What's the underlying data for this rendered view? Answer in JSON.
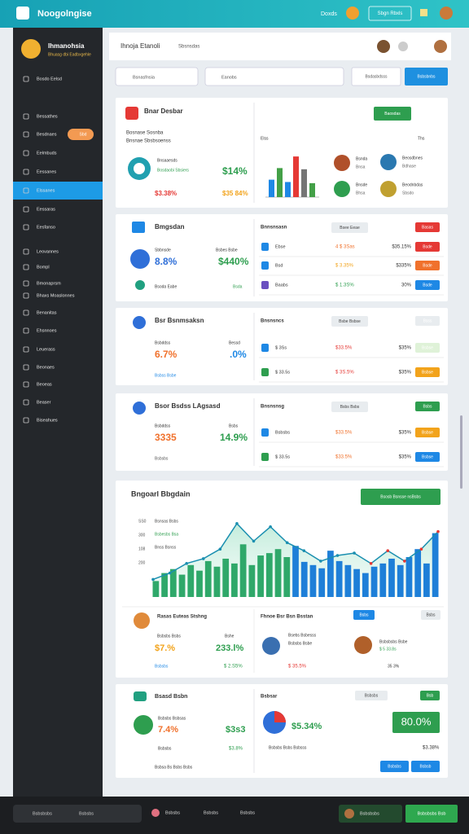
{
  "header": {
    "app_name": "Noogolngise",
    "user": "Doxds",
    "button": "Sbgn Rbxls"
  },
  "sidebar": {
    "profile_name": "Ihmanohsia",
    "profile_sub": "Bhuasg dbi Eadbxgehle",
    "badge": "Sbd",
    "items": [
      "Bosdo Eelsd",
      "Bessathes",
      "Besdnaes",
      "Eelmbuds",
      "Eessanes",
      "Elssanes",
      "Eessaras",
      "Eesfanso",
      "Leovannes",
      "Bompl",
      "Bmonaprsm",
      "Bhaxs Moaslonnes",
      "Benanitas",
      "Ehsnnoes",
      "Leuerass",
      "Beonaes",
      "Beoeas",
      "Beaser",
      "Biseahues"
    ]
  },
  "toolbar": {
    "title": "Ihnoja Etanoli",
    "subtitle": "Sbsnsdas",
    "search": "Bsnasfnsia",
    "filter": "Eanobs",
    "filter_btn": "Bsdasbdsss",
    "primary_btn": "Bsbsbnbs"
  },
  "card1": {
    "title": "Bnar Desbar",
    "desc": "Bosnase Sosnba",
    "desc2": "Bnsnae Sbsbsoenss",
    "stat_label": "Bnsaaesds",
    "stat_sub": "Bosdaobi Sbsiers",
    "stat_main": "$14%",
    "stat_a": "$3.38%",
    "stat_b": "$35 84%",
    "button": "Baosdas",
    "chart_label": "Elss",
    "chart_right": "Ths",
    "chart": {
      "values": [
        30,
        50,
        26,
        70,
        48,
        24
      ],
      "colors": [
        "#1e88e5",
        "#43a047",
        "#1e88e5",
        "#e53935",
        "#757575",
        "#43a047"
      ],
      "ylim": [
        0,
        80
      ]
    },
    "people": [
      [
        "Bsnda",
        "Bnsa"
      ],
      [
        "Beosdbnes",
        "Bdhase"
      ],
      [
        "Bnsde",
        "Bhsa"
      ],
      [
        "Beodnbdas",
        "Sbsdo"
      ]
    ]
  },
  "card2": {
    "title": "Bmgsdan",
    "l1": "Sbbnsde",
    "v1": "8.8%",
    "l2": "Bsbes Bsbe",
    "v2": "$440%",
    "l3": "Bsoda Eabe",
    "v3": "Bsda",
    "right_title": "Bnnsnsasn",
    "pill": "Bsee Eeae",
    "pill2": "Basas",
    "rows": [
      [
        "Ebse",
        "4 $ 3Sas",
        "$35.15%",
        "Bsde"
      ],
      [
        "Bsd",
        "$ 3.35%",
        "$335%",
        "Bsde"
      ],
      [
        "Baabs",
        "$ 1.3S%",
        "30%",
        "Bsde"
      ]
    ]
  },
  "card3": {
    "title": "Bsr Bsnmsaksn",
    "l1": "Bsbddss",
    "l2": "Bessd",
    "v1": "6.7%",
    "v2": ".0%",
    "link": "Bsbss Bsbe",
    "right_title": "Bnsnsncs",
    "pill": "Bsbe Bsbse",
    "pill2": "Bsss",
    "rows": [
      [
        "$ 3Ss",
        "$33.5%",
        "$35%",
        "Bsbse"
      ],
      [
        "$ 33.5s",
        "$ 3S.5%",
        "$35%",
        "Bsbse"
      ]
    ]
  },
  "card4": {
    "title": "Bsor Bsdss LAgsasd",
    "l1": "Bsbddss",
    "l2": "Bsbs",
    "v1": "3335",
    "v2": "14.9%",
    "link": "Bsbsbs",
    "right_title": "Bnsnsnsg",
    "pill": "Bsbs Bsbs",
    "pill2": "Bsbs",
    "rows": [
      [
        "Bsbsbs",
        "$33.5%",
        "$35%",
        "Bsbse"
      ],
      [
        "$ 33.5s",
        "$33.5%",
        "$35%",
        "Bsbse"
      ]
    ]
  },
  "card5": {
    "title": "Bngoarl Bbgdain",
    "button": "Bsosb Bsnsse nsBsbs",
    "legend": [
      "Bsnsas Bsbs",
      "Bsbesbs Bsa",
      "Bnss Bsnss"
    ],
    "yticks": [
      "SS0",
      "300",
      "108",
      "200"
    ],
    "chart": {
      "ylim": [
        0,
        100
      ],
      "bars": [
        20,
        30,
        35,
        28,
        40,
        33,
        45,
        38,
        48,
        42,
        66,
        40,
        52,
        55,
        60,
        50,
        64,
        44,
        40,
        36,
        58,
        45,
        40,
        35,
        30,
        38,
        42,
        48,
        40,
        50,
        60,
        42,
        80
      ],
      "line": [
        22,
        30,
        42,
        48,
        60,
        92,
        70,
        88,
        68,
        58,
        45,
        52,
        55,
        42,
        58,
        45,
        60,
        82
      ]
    },
    "p_title": "Rasas Euteas Stshng",
    "p_l1": "Bsbsbs Bsbs",
    "p_l2": "Bshe",
    "p_v1": "$7.%",
    "p_v2": "233.l%",
    "p_link": "Bsbsbs",
    "p_v3": "$ 2.S5%",
    "r_title": "Fhnoe Bsr Bsn Bsstan",
    "r_pill": "Bsbs",
    "r_pill2": "Bsbs",
    "r_a1": "Bsebs Bsbesss",
    "r_a2": "Bsbsbs Bsbe",
    "r_a3": "$ 35.5%",
    "r_b1": "Bsbsbsbs Bsbe",
    "r_b2": "$ 5 33.8s",
    "r_b3": "35 3%"
  },
  "card6": {
    "title": "Bsasd Bsbn",
    "l1": "Bsbsbs Bsbsas",
    "v1": "7.4%",
    "v2": "$3s3",
    "l2": "Bsbsbs",
    "v3": "$3.8%",
    "foot": "Bsbsa Bs Bsbs Bsbs",
    "right_title": "Bsbsar",
    "pill": "Bsbsbs",
    "pill2": "Bsb",
    "v4": "$5.34%",
    "box": "80.0%",
    "r_l": "Bsbsbs Bsbs Bsbsss",
    "r_v": "$3.38%",
    "btn1": "Bsbsbs",
    "btn2": "Bsbsb"
  },
  "footer": {
    "search": "Bsbsbsbs",
    "s2": "Bsbsbs",
    "i1": "Bsbsbs",
    "i2": "Bsbsbs",
    "i3": "Bsbsbs",
    "pill": "Bsbsbsbs",
    "button": "Bsbsbsbs Bsb"
  }
}
